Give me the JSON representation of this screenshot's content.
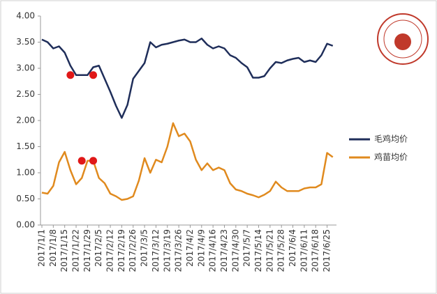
{
  "chart_data": {
    "type": "line",
    "categories": [
      "2017/1/1",
      null,
      "2017/1/8",
      null,
      "2017/1/15",
      null,
      "2017/1/22",
      null,
      "2017/1/29",
      null,
      "2017/2/5",
      null,
      "2017/2/12",
      null,
      "2017/2/19",
      null,
      "2017/2/26",
      null,
      "2017/3/5",
      null,
      "2017/3/12",
      null,
      "2017/3/19",
      null,
      "2017/3/26",
      null,
      "2017/4/2",
      null,
      "2017/4/9",
      null,
      "2017/4/16",
      null,
      "2017/4/23",
      null,
      "2017/4/30",
      null,
      "2017/5/7",
      null,
      "2017/5/14",
      null,
      "2017/5/21",
      null,
      "2017/5/28",
      null,
      "2017/6/4",
      null,
      "2017/6/11",
      null,
      "2017/6/18",
      null,
      "2017/6/25",
      null
    ],
    "series": [
      {
        "name": "毛鸡均价",
        "color": "#1f2e5a",
        "values": [
          3.55,
          3.5,
          3.38,
          3.42,
          3.3,
          3.05,
          2.87,
          2.87,
          2.87,
          3.02,
          3.05,
          2.8,
          2.55,
          2.28,
          2.05,
          2.3,
          2.8,
          2.95,
          3.1,
          3.5,
          3.4,
          3.45,
          3.47,
          3.5,
          3.53,
          3.55,
          3.5,
          3.5,
          3.57,
          3.45,
          3.38,
          3.42,
          3.38,
          3.25,
          3.2,
          3.1,
          3.02,
          2.82,
          2.82,
          2.85,
          3.0,
          3.12,
          3.1,
          3.15,
          3.18,
          3.2,
          3.12,
          3.15,
          3.12,
          3.25,
          3.47,
          3.43
        ]
      },
      {
        "name": "鸡苗均价",
        "color": "#e08a1e",
        "values": [
          0.62,
          0.6,
          0.75,
          1.2,
          1.4,
          1.05,
          0.78,
          0.9,
          1.23,
          1.23,
          0.9,
          0.8,
          0.6,
          0.55,
          0.48,
          0.5,
          0.55,
          0.85,
          1.28,
          1.0,
          1.25,
          1.2,
          1.5,
          1.95,
          1.7,
          1.75,
          1.6,
          1.25,
          1.05,
          1.18,
          1.05,
          1.1,
          1.05,
          0.8,
          0.68,
          0.65,
          0.6,
          0.57,
          0.53,
          0.58,
          0.65,
          0.83,
          0.72,
          0.65,
          0.65,
          0.65,
          0.7,
          0.72,
          0.72,
          0.78,
          1.38,
          1.3
        ]
      }
    ],
    "highlights": [
      {
        "color": "#e01818",
        "values": [
          null,
          null,
          null,
          null,
          null,
          2.87,
          null,
          null,
          null,
          2.87,
          null,
          null,
          null,
          null,
          null,
          null,
          null,
          null,
          null,
          null,
          null,
          null,
          null,
          null,
          null,
          null,
          null,
          null,
          null,
          null,
          null,
          null,
          null,
          null,
          null,
          null,
          null,
          null,
          null,
          null,
          null,
          null,
          null,
          null,
          null,
          null,
          null,
          null,
          null,
          null,
          null,
          null
        ]
      },
      {
        "color": "#e01818",
        "values": [
          null,
          null,
          null,
          null,
          null,
          null,
          null,
          1.23,
          null,
          1.23,
          null,
          null,
          null,
          null,
          null,
          null,
          null,
          null,
          null,
          null,
          null,
          null,
          null,
          null,
          null,
          null,
          null,
          null,
          null,
          null,
          null,
          null,
          null,
          null,
          null,
          null,
          null,
          null,
          null,
          null,
          null,
          null,
          null,
          null,
          null,
          null,
          null,
          null,
          null,
          null,
          null,
          null
        ]
      }
    ],
    "ylim": [
      0,
      4
    ],
    "yticks": [
      {
        "value": 0,
        "label": "0.00"
      },
      {
        "value": 0.5,
        "label": "0.50"
      },
      {
        "value": 1,
        "label": "1.00"
      },
      {
        "value": 1.5,
        "label": "1.50"
      },
      {
        "value": 2,
        "label": "2.00"
      },
      {
        "value": 2.5,
        "label": "2.50"
      },
      {
        "value": 3,
        "label": "3.00"
      },
      {
        "value": 3.5,
        "label": "3.50"
      },
      {
        "value": 4,
        "label": "4.00"
      }
    ],
    "legend": "right",
    "grid": false
  }
}
